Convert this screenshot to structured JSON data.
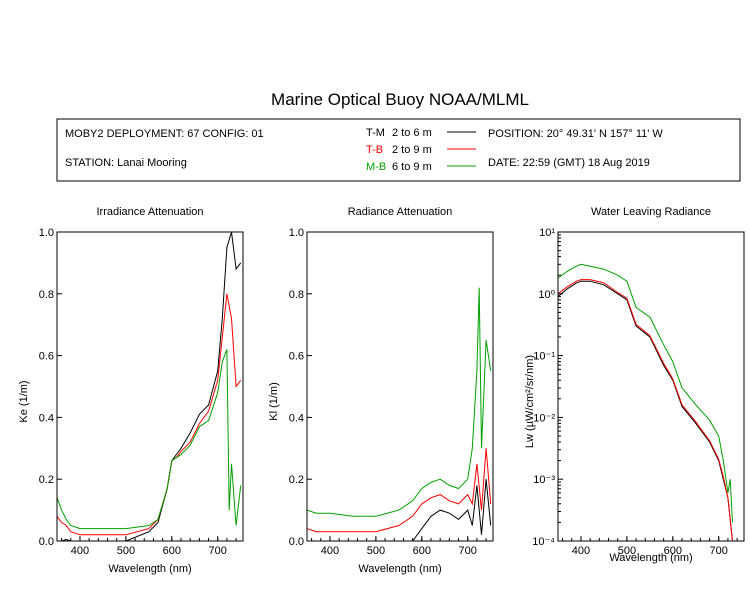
{
  "header": {
    "title": "Marine Optical Buoy NOAA/MLML",
    "deployment": "MOBY2 DEPLOYMENT: 67 CONFIG: 01",
    "station": "STATION: Lanai Mooring",
    "position": "POSITION: 20° 49.31' N   157° 11' W",
    "date": "DATE: 22:59 (GMT) 18 Aug 2019",
    "legend": [
      {
        "code": "T-M",
        "range": "2 to 6  m",
        "color": "#000000"
      },
      {
        "code": "T-B",
        "range": "2 to 9  m",
        "color": "#ff0000"
      },
      {
        "code": "M-B",
        "range": "6 to 9  m",
        "color": "#00a000"
      }
    ]
  },
  "chart_data": [
    {
      "type": "line",
      "title": "Irradiance Attenuation",
      "xlabel": "Wavelength (nm)",
      "ylabel": "Ke  (1/m)",
      "xlim": [
        350,
        755
      ],
      "ylim": [
        0,
        1.0
      ],
      "xticks": [
        "400",
        "500",
        "600",
        "700"
      ],
      "yticks": [
        "0.0",
        "0.2",
        "0.4",
        "0.6",
        "0.8",
        "1.0"
      ],
      "series": [
        {
          "name": "T-M",
          "color": "#000000",
          "x": [
            350,
            360,
            370,
            380,
            400,
            450,
            500,
            550,
            570,
            590,
            600,
            610,
            620,
            640,
            660,
            680,
            700,
            710,
            720,
            730,
            740,
            750
          ],
          "y": [
            0.0,
            0.0,
            0.005,
            0.0,
            0.0,
            0.0,
            0.0,
            0.03,
            0.06,
            0.17,
            0.26,
            0.28,
            0.3,
            0.35,
            0.41,
            0.44,
            0.55,
            0.72,
            0.95,
            1.0,
            0.88,
            0.9
          ]
        },
        {
          "name": "T-B",
          "color": "#ff0000",
          "x": [
            350,
            360,
            370,
            380,
            400,
            450,
            500,
            550,
            570,
            590,
            600,
            610,
            620,
            640,
            660,
            680,
            700,
            710,
            720,
            730,
            740,
            750
          ],
          "y": [
            0.08,
            0.06,
            0.05,
            0.03,
            0.02,
            0.02,
            0.02,
            0.04,
            0.07,
            0.17,
            0.26,
            0.27,
            0.29,
            0.32,
            0.38,
            0.42,
            0.52,
            0.66,
            0.8,
            0.72,
            0.5,
            0.52
          ]
        },
        {
          "name": "M-B",
          "color": "#00a000",
          "x": [
            350,
            360,
            370,
            380,
            400,
            450,
            500,
            550,
            570,
            590,
            600,
            610,
            620,
            640,
            660,
            680,
            700,
            710,
            720,
            725,
            730,
            740,
            750
          ],
          "y": [
            0.14,
            0.1,
            0.07,
            0.05,
            0.04,
            0.04,
            0.04,
            0.05,
            0.07,
            0.17,
            0.26,
            0.27,
            0.28,
            0.31,
            0.37,
            0.39,
            0.48,
            0.58,
            0.62,
            0.1,
            0.25,
            0.05,
            0.18
          ]
        }
      ]
    },
    {
      "type": "line",
      "title": "Radiance Attenuation",
      "xlabel": "Wavelength (nm)",
      "ylabel": "Kl  (1/m)",
      "xlim": [
        350,
        755
      ],
      "ylim": [
        0,
        1.0
      ],
      "xticks": [
        "400",
        "500",
        "600",
        "700"
      ],
      "yticks": [
        "0.0",
        "0.2",
        "0.4",
        "0.6",
        "0.8",
        "1.0"
      ],
      "series": [
        {
          "name": "T-M",
          "color": "#000000",
          "x": [
            350,
            400,
            450,
            500,
            550,
            580,
            600,
            620,
            640,
            660,
            680,
            700,
            710,
            720,
            730,
            740,
            750
          ],
          "y": [
            0.0,
            0.0,
            0.0,
            0.0,
            0.0,
            0.0,
            0.04,
            0.08,
            0.1,
            0.09,
            0.07,
            0.1,
            0.05,
            0.18,
            0.02,
            0.2,
            0.05
          ]
        },
        {
          "name": "T-B",
          "color": "#ff0000",
          "x": [
            350,
            370,
            400,
            450,
            500,
            550,
            580,
            600,
            620,
            640,
            660,
            680,
            700,
            710,
            720,
            730,
            740,
            750
          ],
          "y": [
            0.04,
            0.03,
            0.03,
            0.03,
            0.03,
            0.05,
            0.08,
            0.12,
            0.14,
            0.15,
            0.13,
            0.12,
            0.15,
            0.12,
            0.25,
            0.1,
            0.3,
            0.12
          ]
        },
        {
          "name": "M-B",
          "color": "#00a000",
          "x": [
            350,
            370,
            400,
            450,
            500,
            550,
            580,
            600,
            620,
            640,
            660,
            680,
            700,
            710,
            720,
            725,
            730,
            740,
            750
          ],
          "y": [
            0.1,
            0.09,
            0.09,
            0.08,
            0.08,
            0.1,
            0.13,
            0.17,
            0.19,
            0.2,
            0.18,
            0.17,
            0.2,
            0.3,
            0.55,
            0.82,
            0.3,
            0.65,
            0.55
          ]
        }
      ]
    },
    {
      "type": "line",
      "title": "Water Leaving Radiance",
      "xlabel": "Wavelength (nm)",
      "ylabel": "Lw  (µW/cm²/sr/nm)",
      "xlim": [
        350,
        755
      ],
      "ylim": [
        0.0001,
        10
      ],
      "yscale": "log",
      "xticks": [
        "400",
        "500",
        "600",
        "700"
      ],
      "yticks": [
        "10⁻⁴",
        "10⁻³",
        "10⁻²",
        "10⁻¹",
        "10⁰",
        "10¹"
      ],
      "series": [
        {
          "name": "T-M",
          "color": "#000000",
          "x": [
            350,
            370,
            390,
            400,
            420,
            450,
            480,
            500,
            520,
            550,
            580,
            600,
            620,
            650,
            680,
            700,
            710,
            720,
            730
          ],
          "y": [
            0.9,
            1.2,
            1.5,
            1.6,
            1.6,
            1.4,
            1.0,
            0.8,
            0.3,
            0.2,
            0.07,
            0.04,
            0.015,
            0.008,
            0.004,
            0.002,
            0.001,
            0.0005,
            0.0001
          ]
        },
        {
          "name": "T-B",
          "color": "#ff0000",
          "x": [
            350,
            370,
            390,
            400,
            420,
            450,
            480,
            500,
            520,
            550,
            580,
            600,
            620,
            650,
            680,
            700,
            710,
            720,
            730
          ],
          "y": [
            1.0,
            1.3,
            1.6,
            1.7,
            1.7,
            1.5,
            1.05,
            0.85,
            0.32,
            0.21,
            0.075,
            0.042,
            0.016,
            0.0085,
            0.0042,
            0.0021,
            0.0011,
            0.0005,
            0.0001
          ]
        },
        {
          "name": "M-B",
          "color": "#00a000",
          "x": [
            350,
            370,
            390,
            400,
            420,
            450,
            480,
            500,
            520,
            550,
            580,
            600,
            620,
            650,
            680,
            700,
            710,
            720,
            725,
            730
          ],
          "y": [
            1.8,
            2.3,
            2.8,
            3.0,
            2.8,
            2.5,
            2.0,
            1.6,
            0.6,
            0.42,
            0.15,
            0.08,
            0.03,
            0.016,
            0.009,
            0.005,
            0.002,
            0.0006,
            0.001,
            0.0002
          ]
        }
      ]
    }
  ]
}
